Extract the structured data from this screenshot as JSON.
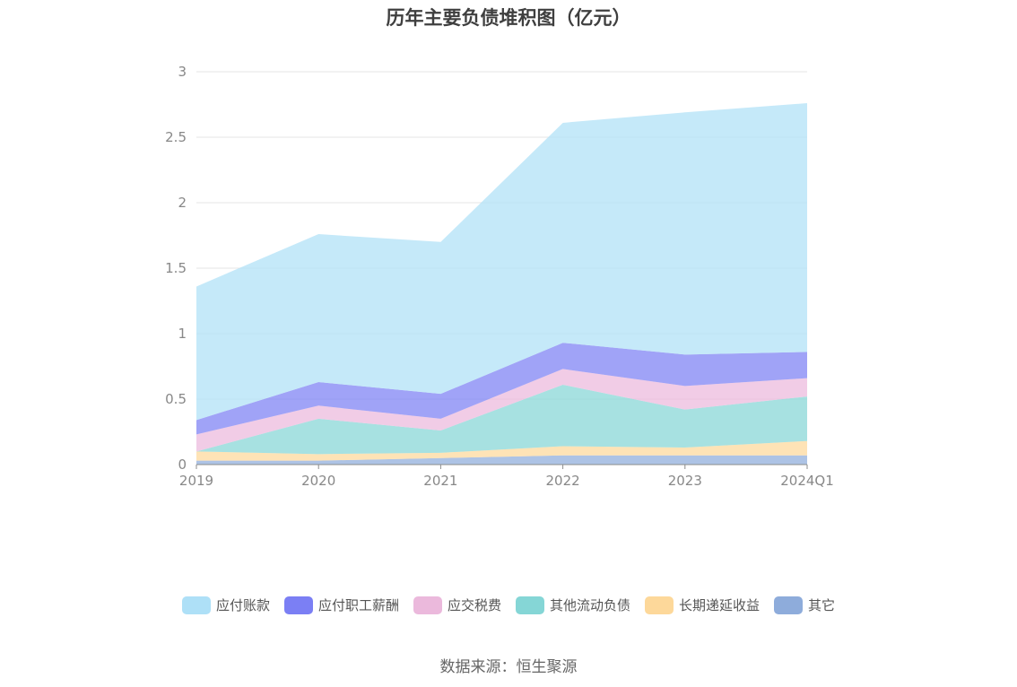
{
  "title": "历年主要负债堆积图（亿元）",
  "source": "数据来源：恒生聚源",
  "chart_data": {
    "type": "area",
    "stacked": true,
    "x": [
      "2019",
      "2020",
      "2021",
      "2022",
      "2023",
      "2024Q1"
    ],
    "ylim": [
      0,
      3
    ],
    "yticks": [
      "0",
      "0.5",
      "1",
      "1.5",
      "2",
      "2.5",
      "3"
    ],
    "grid": true,
    "legend_position": "bottom",
    "series": [
      {
        "name": "应付账款",
        "color": "#aee0f7",
        "values": [
          1.02,
          1.13,
          1.16,
          1.68,
          1.85,
          1.9
        ]
      },
      {
        "name": "应付职工薪酬",
        "color": "#7b7ff4",
        "values": [
          0.11,
          0.18,
          0.19,
          0.2,
          0.24,
          0.2
        ]
      },
      {
        "name": "应交税费",
        "color": "#ebb9dc",
        "values": [
          0.13,
          0.1,
          0.09,
          0.12,
          0.18,
          0.14
        ]
      },
      {
        "name": "其他流动负债",
        "color": "#85d6d6",
        "values": [
          0.0,
          0.27,
          0.17,
          0.47,
          0.29,
          0.34
        ]
      },
      {
        "name": "长期递延收益",
        "color": "#fdd89a",
        "values": [
          0.07,
          0.05,
          0.04,
          0.07,
          0.06,
          0.11
        ]
      },
      {
        "name": "其它",
        "color": "#8eacdb",
        "values": [
          0.03,
          0.03,
          0.05,
          0.07,
          0.07,
          0.07
        ]
      }
    ]
  }
}
